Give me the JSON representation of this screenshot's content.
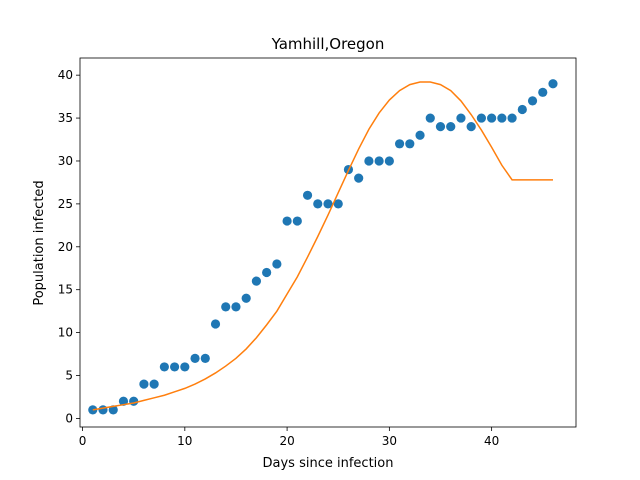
{
  "chart_data": {
    "type": "scatter",
    "title": "Yamhill,Oregon",
    "xlabel": "Days since infection",
    "ylabel": "Population infected",
    "xlim": [
      -0.25,
      48.25
    ],
    "ylim": [
      -1,
      42
    ],
    "xticks": [
      0,
      10,
      20,
      30,
      40
    ],
    "yticks": [
      0,
      5,
      10,
      15,
      20,
      25,
      30,
      35,
      40
    ],
    "grid": false,
    "series": [
      {
        "kind": "scatter",
        "color": "#1f77b4",
        "x": [
          1,
          2,
          3,
          4,
          5,
          6,
          7,
          8,
          9,
          10,
          11,
          12,
          13,
          14,
          15,
          16,
          17,
          18,
          19,
          20,
          21,
          22,
          23,
          24,
          25,
          26,
          27,
          28,
          29,
          30,
          31,
          32,
          33,
          34,
          35,
          36,
          37,
          38,
          39,
          40,
          41,
          42,
          43,
          44,
          45,
          46
        ],
        "y": [
          1,
          1,
          1,
          2,
          2,
          4,
          4,
          6,
          6,
          6,
          7,
          7,
          11,
          13,
          13,
          14,
          16,
          17,
          18,
          23,
          23,
          26,
          25,
          25,
          25,
          29,
          28,
          30,
          30,
          30,
          32,
          32,
          33,
          35,
          34,
          34,
          35,
          34,
          35,
          35,
          35,
          35,
          36,
          37,
          38,
          39
        ]
      },
      {
        "kind": "line",
        "color": "#ff7f0e",
        "x": [
          1,
          2,
          3,
          4,
          5,
          6,
          7,
          8,
          9,
          10,
          11,
          12,
          13,
          14,
          15,
          16,
          17,
          18,
          19,
          20,
          21,
          22,
          23,
          24,
          25,
          26,
          27,
          28,
          29,
          30,
          31,
          32,
          33,
          34,
          35,
          36,
          37,
          38,
          39,
          40,
          41,
          42,
          43,
          44,
          45,
          46
        ],
        "y": [
          1.0,
          1.2,
          1.4,
          1.6,
          1.8,
          2.1,
          2.4,
          2.7,
          3.1,
          3.5,
          4.0,
          4.6,
          5.3,
          6.1,
          7.0,
          8.1,
          9.4,
          10.9,
          12.5,
          14.5,
          16.5,
          18.8,
          21.2,
          23.7,
          26.3,
          28.9,
          31.4,
          33.7,
          35.6,
          37.1,
          38.2,
          38.9,
          39.2,
          39.2,
          38.9,
          38.2,
          37.0,
          35.4,
          33.6,
          31.6,
          29.5,
          27.8,
          27.8,
          27.8,
          27.8,
          27.8
        ]
      }
    ]
  }
}
